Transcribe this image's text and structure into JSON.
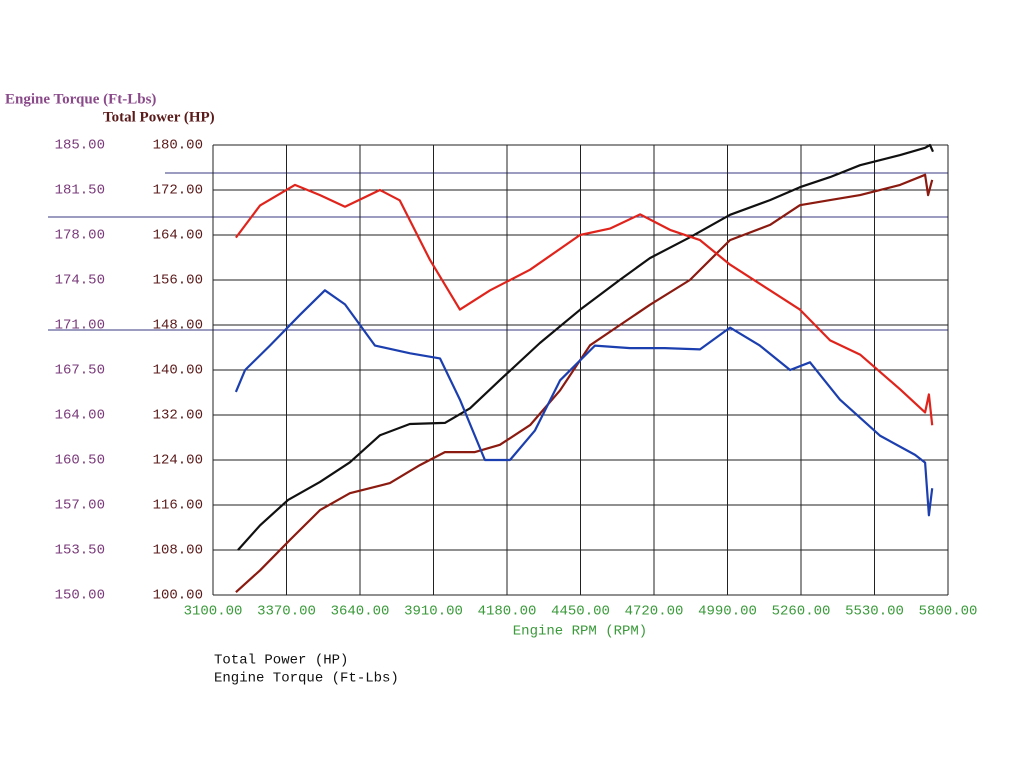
{
  "chart_data": {
    "type": "line",
    "y2_label": "Engine Torque (Ft-Lbs)",
    "y_label": "Total Power (HP)",
    "x_label": "Engine RPM (RPM)",
    "legend": [
      "Total Power (HP)",
      "Engine Torque (Ft-Lbs)"
    ],
    "grid": true,
    "xlim": [
      3100,
      5800
    ],
    "xticks": [
      {
        "value": 3100,
        "label": "3100.00"
      },
      {
        "value": 3370,
        "label": "3370.00"
      },
      {
        "value": 3640,
        "label": "3640.00"
      },
      {
        "value": 3910,
        "label": "3910.00"
      },
      {
        "value": 4180,
        "label": "4180.00"
      },
      {
        "value": 4450,
        "label": "4450.00"
      },
      {
        "value": 4720,
        "label": "4720.00"
      },
      {
        "value": 4990,
        "label": "4990.00"
      },
      {
        "value": 5260,
        "label": "5260.00"
      },
      {
        "value": 5530,
        "label": "5530.00"
      },
      {
        "value": 5800,
        "label": "5800.00"
      }
    ],
    "ylim": [
      100,
      180
    ],
    "yticks": [
      {
        "value": 100,
        "label": "100.00"
      },
      {
        "value": 108,
        "label": "108.00"
      },
      {
        "value": 116,
        "label": "116.00"
      },
      {
        "value": 124,
        "label": "124.00"
      },
      {
        "value": 132,
        "label": "132.00"
      },
      {
        "value": 140,
        "label": "140.00"
      },
      {
        "value": 148,
        "label": "148.00"
      },
      {
        "value": 156,
        "label": "156.00"
      },
      {
        "value": 164,
        "label": "164.00"
      },
      {
        "value": 172,
        "label": "172.00"
      },
      {
        "value": 180,
        "label": "180.00"
      }
    ],
    "y2lim": [
      150,
      185
    ],
    "y2ticks": [
      {
        "value": 150,
        "label": "150.00"
      },
      {
        "value": 153.5,
        "label": "153.50"
      },
      {
        "value": 157,
        "label": "157.00"
      },
      {
        "value": 160.5,
        "label": "160.50"
      },
      {
        "value": 164,
        "label": "164.00"
      },
      {
        "value": 167.5,
        "label": "167.50"
      },
      {
        "value": 171,
        "label": "171.00"
      },
      {
        "value": 174.5,
        "label": "174.50"
      },
      {
        "value": 178,
        "label": "178.00"
      },
      {
        "value": 181.5,
        "label": "181.50"
      },
      {
        "value": 185,
        "label": "185.00"
      }
    ],
    "series": [
      {
        "color": "#111111",
        "x": [
          3192,
          3273,
          3376,
          3493,
          3603,
          3713,
          3823,
          3952,
          4044,
          4154,
          4301,
          4448,
          4594,
          4705,
          4852,
          4999,
          5146,
          5256,
          5367,
          5477,
          5624,
          5716,
          5734,
          5745
        ],
        "values": [
          108.0,
          112.4,
          116.9,
          120.1,
          123.6,
          128.4,
          130.4,
          130.6,
          133.2,
          138.2,
          144.8,
          150.7,
          156.0,
          159.9,
          163.6,
          167.6,
          170.2,
          172.5,
          174.3,
          176.4,
          178.2,
          179.5,
          180.0,
          178.8
        ]
      },
      {
        "color": "#8b1a10",
        "x": [
          3184,
          3273,
          3383,
          3493,
          3603,
          3750,
          3860,
          3952,
          4062,
          4154,
          4265,
          4375,
          4485,
          4595,
          4705,
          4852,
          4999,
          5146,
          5256,
          5367,
          5477,
          5624,
          5716,
          5727,
          5742
        ],
        "values": [
          100.5,
          104.4,
          109.8,
          115.1,
          118.1,
          119.9,
          123.1,
          125.4,
          125.4,
          126.7,
          130.2,
          136.4,
          144.4,
          148.0,
          151.6,
          156.0,
          163.1,
          165.8,
          169.3,
          170.2,
          171.1,
          172.9,
          174.7,
          171.1,
          173.8
        ]
      },
      {
        "color": "#e0241c",
        "axis": "y2",
        "x": [
          3184,
          3273,
          3401,
          3493,
          3585,
          3713,
          3786,
          3896,
          4007,
          4118,
          4265,
          4448,
          4558,
          4669,
          4779,
          4889,
          4999,
          5146,
          5256,
          5367,
          5477,
          5624,
          5716,
          5730,
          5742
        ],
        "values": [
          177.8,
          180.3,
          181.9,
          181.1,
          180.2,
          181.5,
          180.7,
          176.1,
          172.2,
          173.7,
          175.3,
          178.0,
          178.5,
          179.6,
          178.4,
          177.6,
          175.7,
          173.7,
          172.2,
          169.8,
          168.7,
          166.0,
          164.2,
          165.6,
          163.2
        ]
      },
      {
        "color": "#1c3fb0",
        "axis": "y2",
        "x": [
          3184,
          3218,
          3309,
          3420,
          3511,
          3585,
          3695,
          3824,
          3934,
          4007,
          4099,
          4191,
          4283,
          4375,
          4503,
          4632,
          4760,
          4889,
          4999,
          5109,
          5220,
          5293,
          5403,
          5550,
          5679,
          5716,
          5730,
          5742
        ],
        "values": [
          165.8,
          167.5,
          169.4,
          171.8,
          173.7,
          172.6,
          169.4,
          168.8,
          168.4,
          165.2,
          160.5,
          160.5,
          162.8,
          166.7,
          169.4,
          169.2,
          169.2,
          169.1,
          170.8,
          169.4,
          167.5,
          168.1,
          165.2,
          162.4,
          160.9,
          160.3,
          156.2,
          158.3
        ]
      }
    ]
  }
}
